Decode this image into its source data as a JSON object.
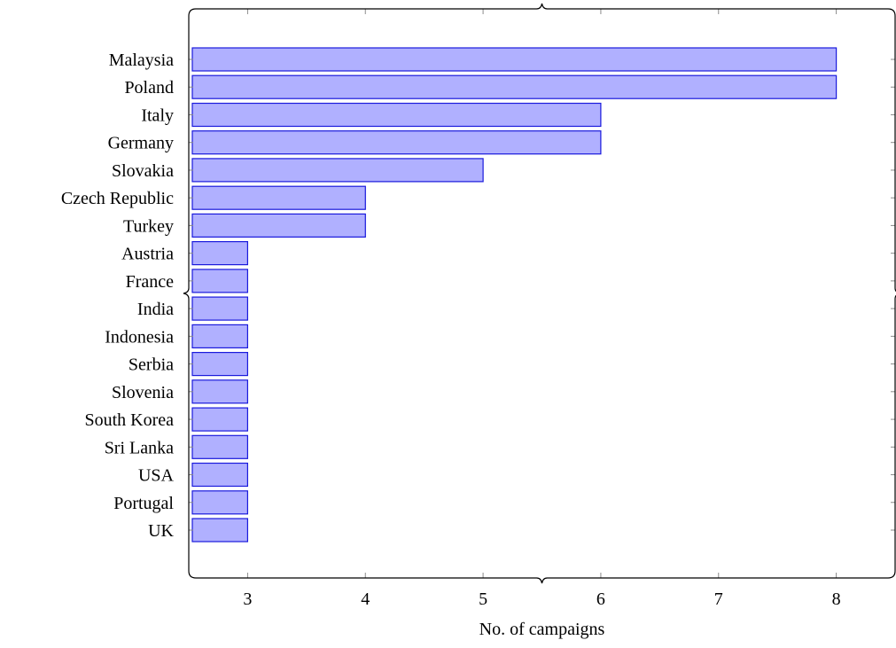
{
  "chart_data": {
    "type": "bar",
    "orientation": "horizontal",
    "categories": [
      "Malaysia",
      "Poland",
      "Italy",
      "Germany",
      "Slovakia",
      "Czech Republic",
      "Turkey",
      "Austria",
      "France",
      "India",
      "Indonesia",
      "Serbia",
      "Slovenia",
      "South Korea",
      "Sri Lanka",
      "USA",
      "Portugal",
      "UK"
    ],
    "values": [
      8,
      8,
      6,
      6,
      5,
      4,
      4,
      3,
      3,
      3,
      3,
      3,
      3,
      3,
      3,
      3,
      3,
      3
    ],
    "title": "",
    "xlabel": "No. of campaigns",
    "ylabel": "",
    "xlim": [
      2.5,
      8.5
    ],
    "xticks": [
      3,
      4,
      5,
      6,
      7,
      8
    ],
    "xtick_labels": [
      "3",
      "4",
      "5",
      "6",
      "7",
      "8"
    ],
    "grid": false,
    "colors": {
      "bar_fill": "#b0b0ff",
      "bar_stroke": "#1a1adc",
      "axis": "#000000",
      "tick": "#8a8a8a"
    }
  }
}
